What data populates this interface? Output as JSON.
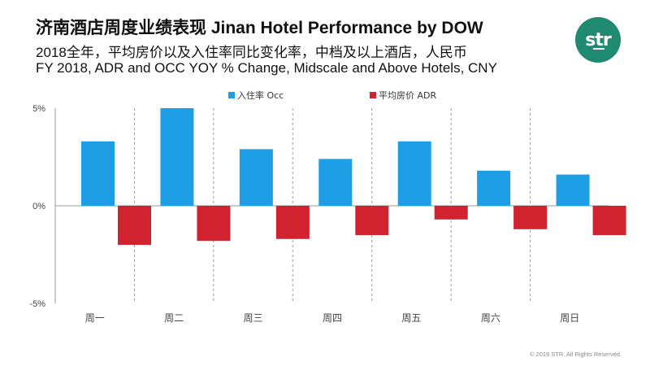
{
  "header": {
    "title": "济南酒店周度业绩表现  Jinan Hotel Performance by DOW",
    "subtitle_cn": "2018全年，平均房价以及入住率同比变化率，中档及以上酒店，人民币",
    "subtitle_en": "FY 2018, ADR and OCC YOY % Change, Midscale and Above Hotels, CNY"
  },
  "logo": {
    "text": "str"
  },
  "footer": {
    "copyright": "© 2019 STR. All Rights Reserved."
  },
  "colors": {
    "occ": "#1e9ee4",
    "adr": "#d0232f",
    "brand": "#1f8a6f"
  },
  "chart_data": {
    "type": "bar",
    "categories": [
      "周一",
      "周二",
      "周三",
      "周四",
      "周五",
      "周六",
      "周日"
    ],
    "series": [
      {
        "name": "入住率 Occ",
        "values": [
          3.3,
          5.0,
          2.9,
          2.4,
          3.3,
          1.8,
          1.6
        ]
      },
      {
        "name": "平均房价 ADR",
        "values": [
          -2.0,
          -1.8,
          -1.7,
          -1.5,
          -0.7,
          -1.2,
          -1.5
        ]
      }
    ],
    "yticks": [
      "5%",
      "0%",
      "-5%"
    ],
    "ylim": [
      -5,
      5
    ],
    "legend_position": "top",
    "grid": false
  }
}
